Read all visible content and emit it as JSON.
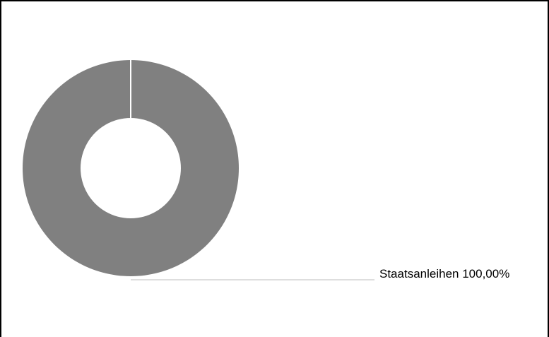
{
  "chart_data": {
    "type": "pie",
    "title": "",
    "slices": [
      {
        "label": "Staatsanleihen",
        "value": 100.0,
        "display": "Staatsanleihen 100,00%",
        "color": "#808080"
      }
    ],
    "hole": "donut"
  }
}
